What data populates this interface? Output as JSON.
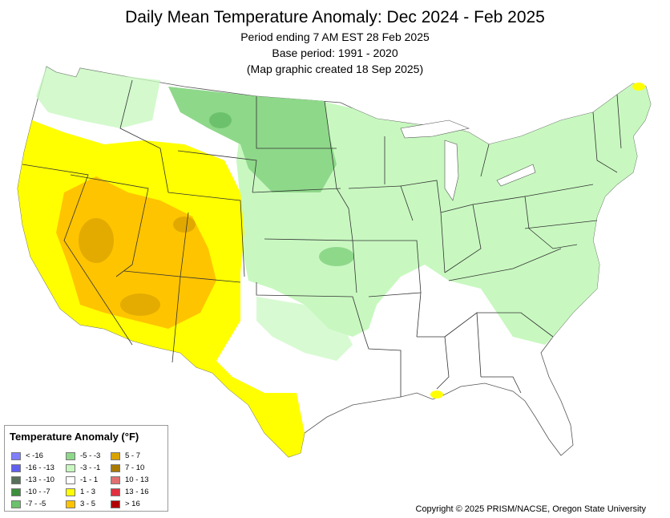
{
  "map": {
    "title": "Daily Mean Temperature Anomaly: Dec 2024 - Feb 2025",
    "period": "Period ending 7 AM EST 28 Feb 2025",
    "base_period": "Base period: 1991 - 2020",
    "created": "(Map graphic created 18 Sep 2025)",
    "copyright": "Copyright © 2025 PRISM/NACSE, Oregon State University"
  },
  "legend": {
    "title": "Temperature Anomaly (°F)",
    "items": [
      {
        "label": "< -16",
        "color": "#7f7fff"
      },
      {
        "label": "-16 - -13",
        "color": "#6060f0"
      },
      {
        "label": "-13 - -10",
        "color": "#58705a"
      },
      {
        "label": "-10 - -7",
        "color": "#3c8f3c"
      },
      {
        "label": "-7 - -5",
        "color": "#6cc26c"
      },
      {
        "label": "-5 - -3",
        "color": "#8ed88a"
      },
      {
        "label": "-3 - -1",
        "color": "#c8f8c0"
      },
      {
        "label": "-1 - 1",
        "color": "#ffffff"
      },
      {
        "label": "1 - 3",
        "color": "#ffff00"
      },
      {
        "label": "3 - 5",
        "color": "#ffc400"
      },
      {
        "label": "5 - 7",
        "color": "#d9a300"
      },
      {
        "label": "7 - 10",
        "color": "#a87a00"
      },
      {
        "label": "10 - 13",
        "color": "#e07070"
      },
      {
        "label": "13 - 16",
        "color": "#e03040"
      },
      {
        "label": "> 16",
        "color": "#b00000"
      }
    ]
  }
}
